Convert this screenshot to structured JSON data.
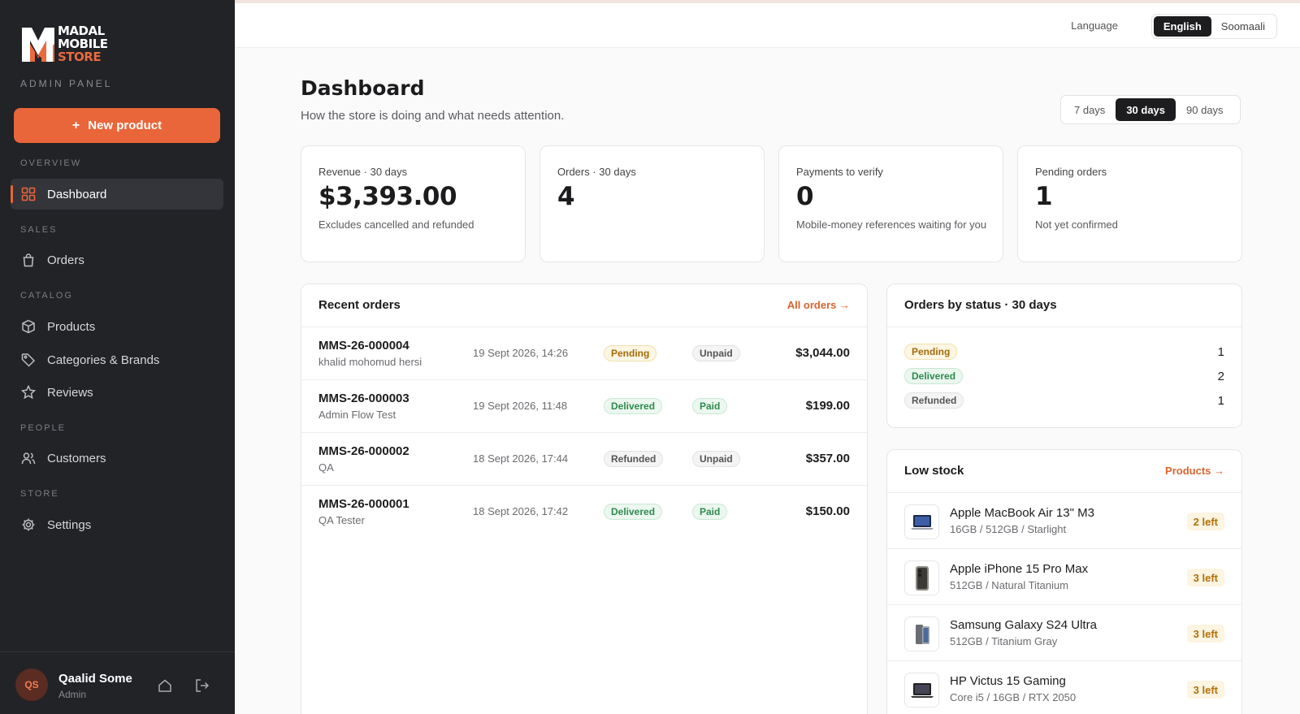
{
  "brand": {
    "logo_line1": "MADAL",
    "logo_line2": "MOBILE",
    "logo_line3": "STORE",
    "subtitle": "ADMIN PANEL",
    "accent": "#e9653a"
  },
  "sidebar": {
    "new_product_label": "New product",
    "sections": {
      "overview": "OVERVIEW",
      "sales": "SALES",
      "catalog": "CATALOG",
      "people": "PEOPLE",
      "store": "STORE"
    },
    "items": [
      {
        "label": "Dashboard",
        "icon": "grid-icon",
        "active": true
      },
      {
        "label": "Orders",
        "icon": "shopping-bag-icon"
      },
      {
        "label": "Products",
        "icon": "box-icon"
      },
      {
        "label": "Categories & Brands",
        "icon": "tag-icon"
      },
      {
        "label": "Reviews",
        "icon": "star-icon"
      },
      {
        "label": "Customers",
        "icon": "users-icon"
      },
      {
        "label": "Settings",
        "icon": "gear-icon"
      }
    ],
    "user": {
      "initials": "QS",
      "name": "Qaalid Some",
      "role": "Admin"
    }
  },
  "topbar": {
    "language_label": "Language",
    "languages": [
      "English",
      "Soomaali"
    ],
    "selected_language": "English"
  },
  "header": {
    "title": "Dashboard",
    "subtitle": "How the store is doing and what needs attention.",
    "ranges": [
      "7 days",
      "30 days",
      "90 days"
    ],
    "selected_range": "30 days"
  },
  "stats": [
    {
      "label": "Revenue · 30 days",
      "value": "$3,393.00",
      "note": "Excludes cancelled and refunded"
    },
    {
      "label": "Orders · 30 days",
      "value": "4",
      "note": ""
    },
    {
      "label": "Payments to verify",
      "value": "0",
      "note": "Mobile-money references waiting for you"
    },
    {
      "label": "Pending orders",
      "value": "1",
      "note": "Not yet confirmed"
    }
  ],
  "recent_orders": {
    "title": "Recent orders",
    "link": "All orders →",
    "rows": [
      {
        "id": "MMS-26-000004",
        "customer": "khalid mohomud hersi",
        "date": "19 Sept 2026, 14:26",
        "status": "Pending",
        "payment": "Unpaid",
        "amount": "$3,044.00"
      },
      {
        "id": "MMS-26-000003",
        "customer": "Admin Flow Test",
        "date": "19 Sept 2026, 11:48",
        "status": "Delivered",
        "payment": "Paid",
        "amount": "$199.00"
      },
      {
        "id": "MMS-26-000002",
        "customer": "QA",
        "date": "18 Sept 2026, 17:44",
        "status": "Refunded",
        "payment": "Unpaid",
        "amount": "$357.00"
      },
      {
        "id": "MMS-26-000001",
        "customer": "QA Tester",
        "date": "18 Sept 2026, 17:42",
        "status": "Delivered",
        "payment": "Paid",
        "amount": "$150.00"
      }
    ]
  },
  "orders_by_status": {
    "title": "Orders by status · 30 days",
    "rows": [
      {
        "status": "Pending",
        "count": "1"
      },
      {
        "status": "Delivered",
        "count": "2"
      },
      {
        "status": "Refunded",
        "count": "1"
      }
    ]
  },
  "low_stock": {
    "title": "Low stock",
    "link": "Products →",
    "rows": [
      {
        "name": "Apple MacBook Air 13\" M3",
        "spec": "16GB / 512GB / Starlight",
        "left": "2 left",
        "icon": "laptop-icon"
      },
      {
        "name": "Apple iPhone 15 Pro Max",
        "spec": "512GB / Natural Titanium",
        "left": "3 left",
        "icon": "phone-icon"
      },
      {
        "name": "Samsung Galaxy S24 Ultra",
        "spec": "512GB / Titanium Gray",
        "left": "3 left",
        "icon": "phone-icon"
      },
      {
        "name": "HP Victus 15 Gaming",
        "spec": "Core i5 / 16GB / RTX 2050",
        "left": "3 left",
        "icon": "laptop-icon"
      }
    ]
  }
}
